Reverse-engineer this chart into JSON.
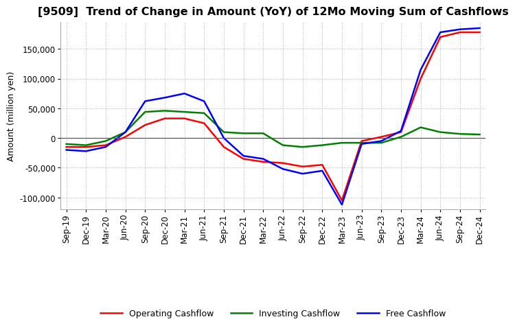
{
  "title": "[9509]  Trend of Change in Amount (YoY) of 12Mo Moving Sum of Cashflows",
  "ylabel": "Amount (million yen)",
  "ylim": [
    -120000,
    195000
  ],
  "yticks": [
    -100000,
    -50000,
    0,
    50000,
    100000,
    150000
  ],
  "x_labels": [
    "Sep-19",
    "Dec-19",
    "Mar-20",
    "Jun-20",
    "Sep-20",
    "Dec-20",
    "Mar-21",
    "Jun-21",
    "Sep-21",
    "Dec-21",
    "Mar-22",
    "Jun-22",
    "Sep-22",
    "Dec-22",
    "Mar-23",
    "Jun-23",
    "Sep-23",
    "Dec-23",
    "Mar-24",
    "Jun-24",
    "Sep-24",
    "Dec-24"
  ],
  "operating": [
    -15000,
    -15000,
    -12000,
    2000,
    22000,
    33000,
    33000,
    25000,
    -15000,
    -35000,
    -40000,
    -42000,
    -48000,
    -45000,
    -105000,
    -5000,
    2000,
    10000,
    100000,
    170000,
    178000,
    178000
  ],
  "investing": [
    -10000,
    -12000,
    -5000,
    10000,
    44000,
    46000,
    44000,
    42000,
    10000,
    8000,
    8000,
    -12000,
    -15000,
    -12000,
    -8000,
    -8000,
    -8000,
    2000,
    18000,
    10000,
    7000,
    6000
  ],
  "free": [
    -20000,
    -22000,
    -15000,
    10000,
    62000,
    68000,
    75000,
    62000,
    0,
    -30000,
    -35000,
    -52000,
    -60000,
    -55000,
    -112000,
    -10000,
    -5000,
    12000,
    115000,
    178000,
    183000,
    185000
  ],
  "operating_color": "#ff0000",
  "investing_color": "#008000",
  "free_color": "#0000ff",
  "background_color": "#ffffff",
  "grid_color": "#b0b0b0",
  "title_fontsize": 11.5,
  "label_fontsize": 9,
  "tick_fontsize": 8.5
}
